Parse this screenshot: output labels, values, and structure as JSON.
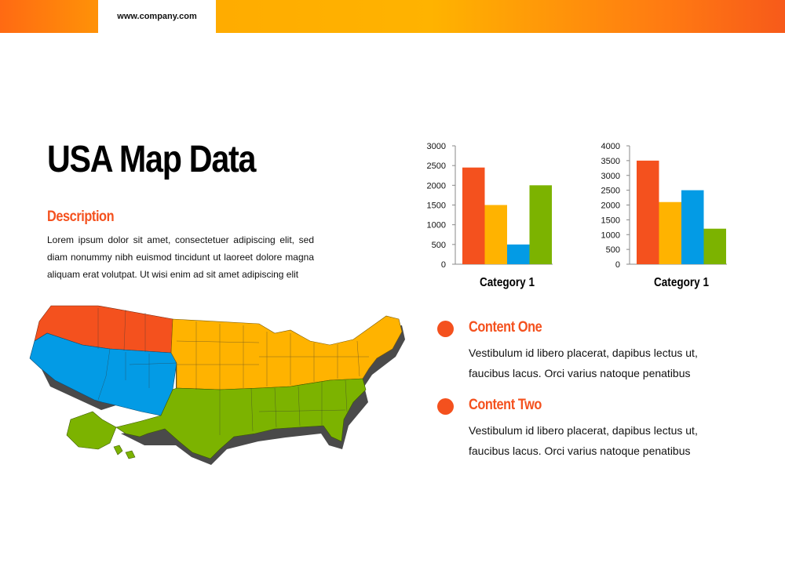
{
  "header": {
    "url": "www.company.com"
  },
  "main": {
    "title": "USA Map Data",
    "description_heading": "Description",
    "description_text": "Lorem ipsum dolor sit amet, consectetuer adipiscing elit, sed diam nonummy nibh euismod tincidunt ut laoreet dolore magna aliquam erat volutpat. Ut wisi enim ad sit amet adipiscing elit"
  },
  "content_items": [
    {
      "heading": "Content One",
      "body": "Vestibulum id libero placerat, dapibus lectus ut, faucibus lacus. Orci varius natoque penatibus"
    },
    {
      "heading": "Content Two",
      "body": "Vestibulum id libero placerat, dapibus lectus ut, faucibus lacus. Orci varius natoque penatibus"
    }
  ],
  "colors": {
    "orange_red": "#f4511e",
    "amber": "#ffb300",
    "blue": "#039be5",
    "green": "#7cb300"
  },
  "map": {
    "region_colors": [
      "#f4511e",
      "#ffb300",
      "#039be5",
      "#7cb300"
    ]
  },
  "chart_data": [
    {
      "type": "bar",
      "categories": [
        "Category 1"
      ],
      "series": [
        {
          "values": [
            2450
          ],
          "color": "#f4511e"
        },
        {
          "values": [
            1500
          ],
          "color": "#ffb300"
        },
        {
          "values": [
            500
          ],
          "color": "#039be5"
        },
        {
          "values": [
            2000
          ],
          "color": "#7cb300"
        }
      ],
      "ylim": [
        0,
        3000
      ],
      "yticks": [
        "0",
        "500",
        "1000",
        "1500",
        "2000",
        "2500",
        "3000"
      ],
      "grid": false,
      "legend": "none"
    },
    {
      "type": "bar",
      "categories": [
        "Category 1"
      ],
      "series": [
        {
          "values": [
            3500
          ],
          "color": "#f4511e"
        },
        {
          "values": [
            2100
          ],
          "color": "#ffb300"
        },
        {
          "values": [
            2500
          ],
          "color": "#039be5"
        },
        {
          "values": [
            1200
          ],
          "color": "#7cb300"
        }
      ],
      "ylim": [
        0,
        4000
      ],
      "yticks": [
        "0",
        "500",
        "1000",
        "1500",
        "2000",
        "2500",
        "3000",
        "3500",
        "4000"
      ],
      "grid": false,
      "legend": "none"
    }
  ]
}
